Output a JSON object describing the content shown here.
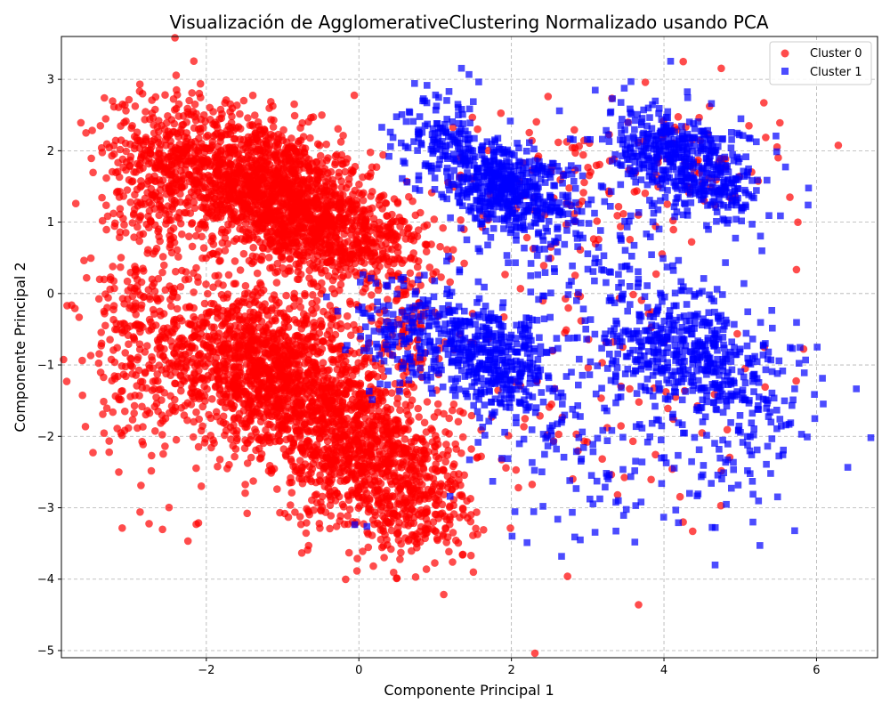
{
  "chart_data": {
    "type": "scatter",
    "title": "Visualización de AgglomerativeClustering Normalizado usando PCA",
    "xlabel": "Componente Principal 1",
    "ylabel": "Componente Principal 2",
    "xlim": [
      -3.9,
      6.8
    ],
    "ylim": [
      -5.1,
      3.6
    ],
    "xticks": [
      -2,
      0,
      2,
      4,
      6
    ],
    "yticks": [
      -5,
      -4,
      -3,
      -2,
      -1,
      0,
      1,
      2,
      3
    ],
    "grid": true,
    "legend_position": "top-right",
    "series": [
      {
        "name": "Cluster 0",
        "color": "#ff0000",
        "marker": "circle",
        "clusters": [
          {
            "cx": -1.3,
            "cy": 1.5,
            "sx": 0.75,
            "sy": 0.55,
            "rho": -0.45,
            "n": 1500
          },
          {
            "cx": -0.2,
            "cy": 0.8,
            "sx": 0.55,
            "sy": 0.4,
            "rho": -0.3,
            "n": 500
          },
          {
            "cx": -1.2,
            "cy": -1.1,
            "sx": 0.8,
            "sy": 0.6,
            "rho": -0.35,
            "n": 1500
          },
          {
            "cx": 0.1,
            "cy": -2.3,
            "sx": 0.6,
            "sy": 0.55,
            "rho": -0.2,
            "n": 800
          },
          {
            "cx": -2.8,
            "cy": -0.5,
            "sx": 0.35,
            "sy": 1.0,
            "rho": 0.0,
            "n": 250
          },
          {
            "cx": -2.7,
            "cy": 1.6,
            "sx": 0.4,
            "sy": 0.6,
            "rho": 0.0,
            "n": 200
          },
          {
            "cx": 0.8,
            "cy": -3.0,
            "sx": 0.4,
            "sy": 0.5,
            "rho": 0.0,
            "n": 200
          },
          {
            "cx": 2.5,
            "cy": 1.4,
            "sx": 0.7,
            "sy": 0.6,
            "rho": 0.0,
            "n": 80
          },
          {
            "cx": 4.3,
            "cy": 1.9,
            "sx": 0.8,
            "sy": 0.6,
            "rho": 0.0,
            "n": 80
          },
          {
            "cx": 3.0,
            "cy": -1.5,
            "sx": 1.0,
            "sy": 1.0,
            "rho": 0.0,
            "n": 100
          },
          {
            "cx": 0.6,
            "cy": -0.5,
            "sx": 0.3,
            "sy": 0.3,
            "rho": 0.0,
            "n": 80
          }
        ]
      },
      {
        "name": "Cluster 1",
        "color": "#0000ff",
        "marker": "square",
        "clusters": [
          {
            "cx": 1.9,
            "cy": 1.5,
            "sx": 0.45,
            "sy": 0.35,
            "rho": -0.4,
            "n": 500
          },
          {
            "cx": 4.3,
            "cy": 1.8,
            "sx": 0.5,
            "sy": 0.4,
            "rho": -0.4,
            "n": 500
          },
          {
            "cx": 1.7,
            "cy": -0.9,
            "sx": 0.45,
            "sy": 0.4,
            "rho": -0.3,
            "n": 450
          },
          {
            "cx": 4.3,
            "cy": -0.8,
            "sx": 0.55,
            "sy": 0.45,
            "rho": -0.3,
            "n": 450
          },
          {
            "cx": 1.1,
            "cy": 2.2,
            "sx": 0.3,
            "sy": 0.35,
            "rho": 0.0,
            "n": 120
          },
          {
            "cx": 3.2,
            "cy": 0.6,
            "sx": 0.9,
            "sy": 0.9,
            "rho": 0.0,
            "n": 150
          },
          {
            "cx": 3.5,
            "cy": -2.3,
            "sx": 1.1,
            "sy": 0.6,
            "rho": 0.0,
            "n": 150
          },
          {
            "cx": 5.3,
            "cy": -1.8,
            "sx": 0.5,
            "sy": 0.6,
            "rho": 0.0,
            "n": 80
          },
          {
            "cx": 0.5,
            "cy": -0.5,
            "sx": 0.35,
            "sy": 0.4,
            "rho": 0.0,
            "n": 120
          }
        ]
      }
    ]
  }
}
